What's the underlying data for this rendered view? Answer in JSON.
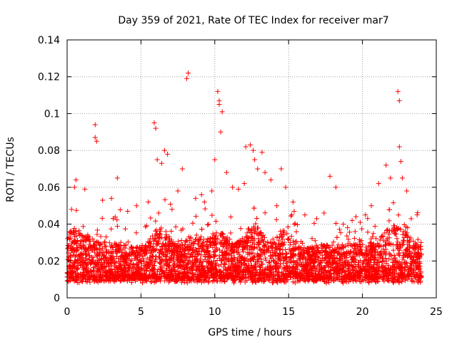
{
  "chart_data": {
    "type": "scatter",
    "title": "Day 359 of 2021, Rate Of TEC Index for receiver mar7",
    "xlabel": "GPS time / hours",
    "ylabel": "ROTI / TECUs",
    "xlim": [
      0,
      25
    ],
    "ylim": [
      0,
      0.14
    ],
    "x_ticks": [
      0,
      5,
      10,
      15,
      20,
      25
    ],
    "x_tick_labels": [
      "0",
      "5",
      "10",
      "15",
      "20",
      "25"
    ],
    "y_ticks": [
      0,
      0.02,
      0.04,
      0.06,
      0.08,
      0.1,
      0.12,
      0.14
    ],
    "y_tick_labels": [
      "0",
      "0.02",
      "0.04",
      "0.06",
      "0.08",
      "0.1",
      "0.12",
      "0.14"
    ],
    "grid": true,
    "marker": "plus",
    "marker_color": "#ff0000",
    "series": [
      {
        "name": "ROTI",
        "x": [
          0.3,
          0.6,
          1.9,
          1.9,
          2.0,
          3.4,
          5.9,
          6.0,
          6.1,
          6.4,
          6.6,
          6.8,
          7.8,
          8.1,
          8.2,
          9.1,
          10.0,
          10.2,
          10.3,
          10.3,
          10.4,
          10.5,
          10.8,
          12.1,
          12.4,
          12.6,
          12.7,
          13.2,
          14.5,
          14.8,
          17.8,
          18.2,
          21.1,
          21.6,
          21.9,
          22.4,
          22.5,
          22.5,
          22.6,
          22.7,
          23.0,
          0.5,
          1.2,
          2.4,
          3.0,
          4.1,
          4.7,
          5.5,
          6.2,
          7.1,
          7.5,
          8.7,
          9.3,
          9.8,
          11.2,
          11.6,
          12.0,
          12.9,
          13.4,
          13.8,
          14.2,
          15.3,
          16.1,
          16.9,
          17.4,
          18.7,
          19.3,
          20.2,
          20.6,
          23.3,
          23.7
        ],
        "y": [
          0.048,
          0.064,
          0.094,
          0.087,
          0.085,
          0.065,
          0.095,
          0.092,
          0.075,
          0.073,
          0.08,
          0.078,
          0.07,
          0.119,
          0.122,
          0.056,
          0.075,
          0.112,
          0.107,
          0.105,
          0.09,
          0.101,
          0.068,
          0.082,
          0.083,
          0.08,
          0.075,
          0.079,
          0.07,
          0.06,
          0.066,
          0.06,
          0.062,
          0.072,
          0.065,
          0.112,
          0.107,
          0.082,
          0.074,
          0.065,
          0.058,
          0.06,
          0.059,
          0.053,
          0.054,
          0.047,
          0.05,
          0.052,
          0.046,
          0.048,
          0.058,
          0.054,
          0.052,
          0.058,
          0.06,
          0.059,
          0.062,
          0.07,
          0.068,
          0.064,
          0.05,
          0.052,
          0.045,
          0.043,
          0.046,
          0.04,
          0.042,
          0.045,
          0.05,
          0.043,
          0.045
        ]
      }
    ]
  }
}
